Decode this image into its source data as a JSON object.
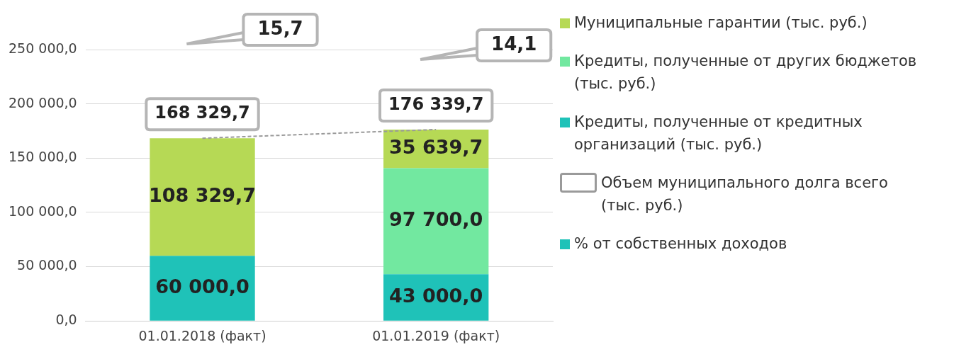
{
  "chart_data": {
    "type": "bar",
    "stacked": true,
    "categories": [
      "01.01.2018 (факт)",
      "01.01.2019 (факт)"
    ],
    "series": [
      {
        "name": "Кредиты, полученные от кредитных организаций (тыс. руб.)",
        "color": "#1fc2b8",
        "values": [
          60000,
          43000
        ],
        "value_labels": [
          "60 000,0",
          "43 000,0"
        ]
      },
      {
        "name": "Кредиты, полученные от других бюджетов (тыс. руб.)",
        "color": "#72e8a0",
        "values": [
          null,
          97700
        ],
        "value_labels": [
          null,
          "97 700,0"
        ]
      },
      {
        "name": "Муниципальные гарантии (тыс. руб.)",
        "color": "#b6d955",
        "values": [
          108329.7,
          35639.7
        ],
        "value_labels": [
          "108 329,7",
          "35 639,7"
        ]
      },
      {
        "name": "Объем муниципального долга всего (тыс. руб.)",
        "type": "line",
        "color": "#9a9a9a",
        "line_style": "dashed",
        "values": [
          168329.7,
          176339.7
        ],
        "value_labels": [
          "168 329,7",
          "176 339,7"
        ]
      }
    ],
    "annotations": [
      "15,7",
      "14,1",
      "% от собственных доходов"
    ],
    "ylim": [
      0,
      250000
    ],
    "yticks": [
      {
        "value": 0,
        "label": "0,0"
      },
      {
        "value": 50000,
        "label": "50 000,0"
      },
      {
        "value": 100000,
        "label": "100 000,0"
      },
      {
        "value": 150000,
        "label": "150 000,0"
      },
      {
        "value": 200000,
        "label": "200 000,0"
      },
      {
        "value": 250000,
        "label": "250 000,0"
      }
    ],
    "grid": "y",
    "legend": "right"
  }
}
